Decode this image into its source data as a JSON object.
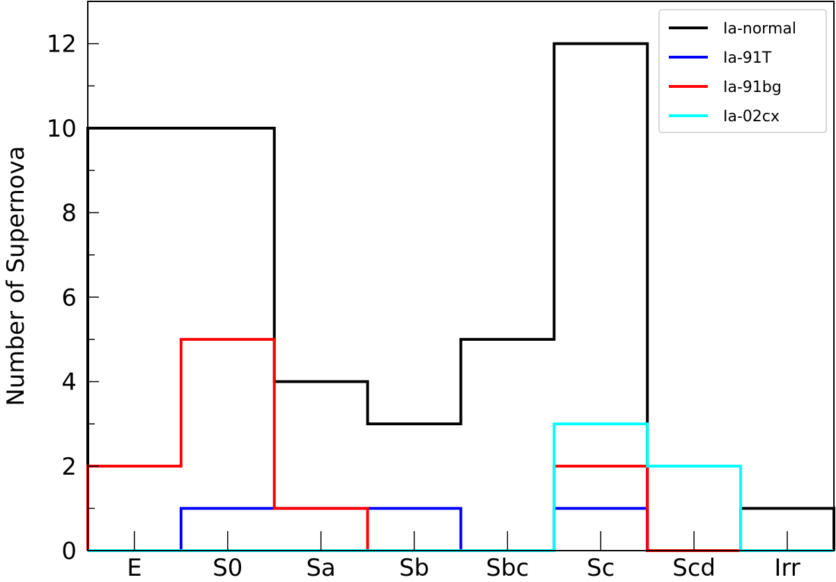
{
  "chart_data": {
    "type": "step-histogram",
    "categories": [
      "E",
      "S0",
      "Sa",
      "Sb",
      "Sbc",
      "Sc",
      "Scd",
      "Irr"
    ],
    "ylabel": "Number of Supernova",
    "xlabel": "",
    "ylim": [
      0,
      13
    ],
    "yticks": [
      0,
      2,
      4,
      6,
      8,
      10,
      12
    ],
    "yminor_step": 1,
    "legend_position": "top-right",
    "series": [
      {
        "name": "Ia-normal",
        "color": "#000000",
        "values": [
          10,
          10,
          4,
          3,
          5,
          12,
          0,
          1
        ]
      },
      {
        "name": "Ia-91T",
        "color": "#0000ff",
        "values": [
          0,
          1,
          1,
          1,
          0,
          1,
          0,
          0
        ]
      },
      {
        "name": "Ia-91bg",
        "color": "#ff0000",
        "values": [
          2,
          5,
          1,
          0,
          0,
          2,
          0,
          0
        ]
      },
      {
        "name": "Ia-02cx",
        "color": "#00ffff",
        "values": [
          0,
          0,
          0,
          0,
          0,
          3,
          2,
          0
        ]
      }
    ]
  }
}
